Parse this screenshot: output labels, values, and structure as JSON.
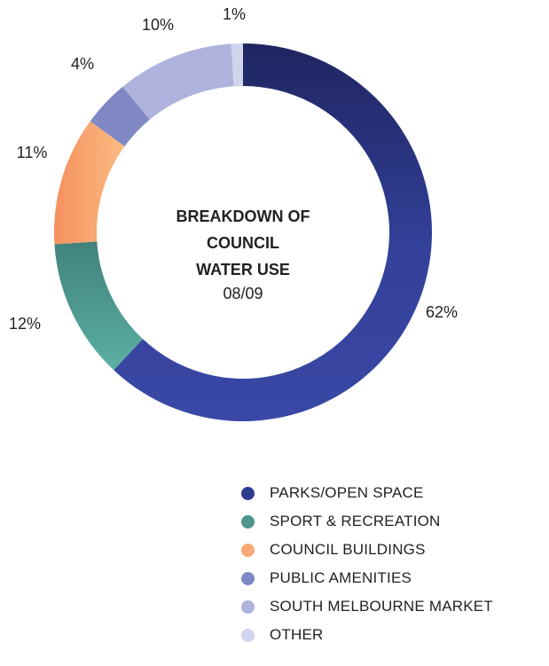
{
  "chart_data": {
    "type": "donut",
    "title_lines": [
      "BREAKDOWN OF",
      "COUNCIL",
      "WATER USE"
    ],
    "subtitle": "08/09",
    "unit": "%",
    "categories": [
      "PARKS/OPEN SPACE",
      "SPORT & RECREATION",
      "COUNCIL BUILDINGS",
      "PUBLIC AMENITIES",
      "SOUTH MELBOURNE MARKET",
      "OTHER"
    ],
    "values": [
      62,
      12,
      11,
      4,
      10,
      1
    ],
    "value_labels": [
      "62%",
      "12%",
      "11%",
      "4%",
      "10%",
      "1%"
    ],
    "colors": [
      "#2e3b8f",
      "#4e958c",
      "#f8a875",
      "#8088c4",
      "#adb3dc",
      "#d0d4ec"
    ],
    "legend_placement": "bottom-right",
    "grid": false
  }
}
